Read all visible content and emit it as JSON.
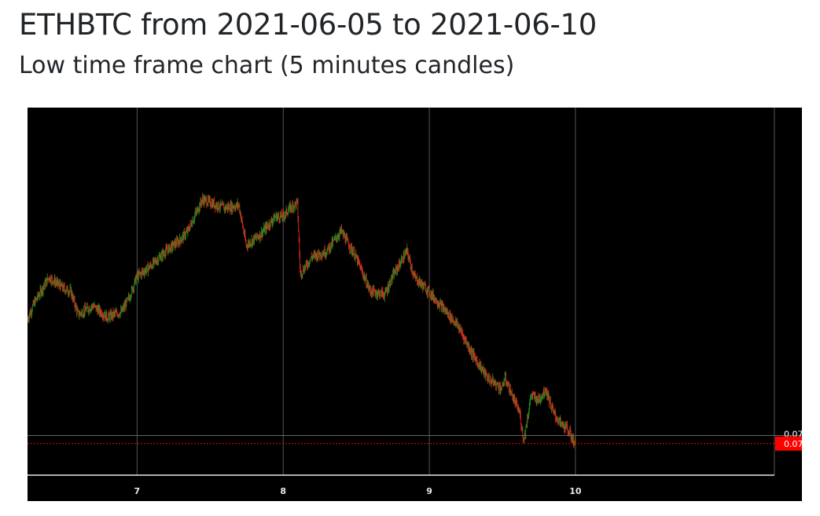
{
  "header": {
    "title": "ETHBTC from 2021-06-05 to 2021-06-10",
    "subtitle": "Low time frame chart (5 minutes candles)"
  },
  "colors": {
    "up": "#1e8c1e",
    "down": "#e0281e",
    "background": "#000000",
    "grid": "#555555",
    "price_tag": "#ff0000"
  },
  "chart_data": {
    "type": "candlestick",
    "interval": "5 minutes",
    "x_ticks": [
      "7",
      "8",
      "9",
      "10"
    ],
    "x_range_days": [
      6.25,
      11.55
    ],
    "y_range": [
      0.0718,
      0.0782
    ],
    "price_labels": {
      "high_line": "0.07",
      "last_price": "0.07"
    },
    "last_price": 0.07235,
    "reference_price": 0.07249,
    "series_path": [
      [
        6.25,
        0.0745
      ],
      [
        6.3,
        0.0748
      ],
      [
        6.4,
        0.07525
      ],
      [
        6.5,
        0.07505
      ],
      [
        6.55,
        0.075
      ],
      [
        6.6,
        0.0746
      ],
      [
        6.7,
        0.07475
      ],
      [
        6.8,
        0.07455
      ],
      [
        6.9,
        0.07465
      ],
      [
        6.95,
        0.0749
      ],
      [
        7.0,
        0.07525
      ],
      [
        7.1,
        0.07545
      ],
      [
        7.2,
        0.0757
      ],
      [
        7.3,
        0.0759
      ],
      [
        7.35,
        0.07605
      ],
      [
        7.45,
        0.0766
      ],
      [
        7.6,
        0.07645
      ],
      [
        7.7,
        0.0765
      ],
      [
        7.75,
        0.0758
      ],
      [
        7.85,
        0.076
      ],
      [
        7.95,
        0.0763
      ],
      [
        8.0,
        0.0763
      ],
      [
        8.05,
        0.07645
      ],
      [
        8.1,
        0.07655
      ],
      [
        8.12,
        0.0753
      ],
      [
        8.2,
        0.0756
      ],
      [
        8.3,
        0.0757
      ],
      [
        8.4,
        0.07605
      ],
      [
        8.5,
        0.0756
      ],
      [
        8.6,
        0.075
      ],
      [
        8.7,
        0.07495
      ],
      [
        8.75,
        0.07525
      ],
      [
        8.85,
        0.0757
      ],
      [
        8.9,
        0.07525
      ],
      [
        9.0,
        0.075
      ],
      [
        9.1,
        0.0747
      ],
      [
        9.2,
        0.0744
      ],
      [
        9.3,
        0.0739
      ],
      [
        9.4,
        0.0735
      ],
      [
        9.5,
        0.0733
      ],
      [
        9.52,
        0.0735
      ],
      [
        9.6,
        0.073
      ],
      [
        9.62,
        0.0729
      ],
      [
        9.65,
        0.0724
      ],
      [
        9.7,
        0.0732
      ],
      [
        9.75,
        0.0731
      ],
      [
        9.8,
        0.0733
      ],
      [
        9.85,
        0.0729
      ],
      [
        9.9,
        0.0727
      ],
      [
        9.95,
        0.0726
      ],
      [
        10.0,
        0.07235
      ]
    ]
  }
}
